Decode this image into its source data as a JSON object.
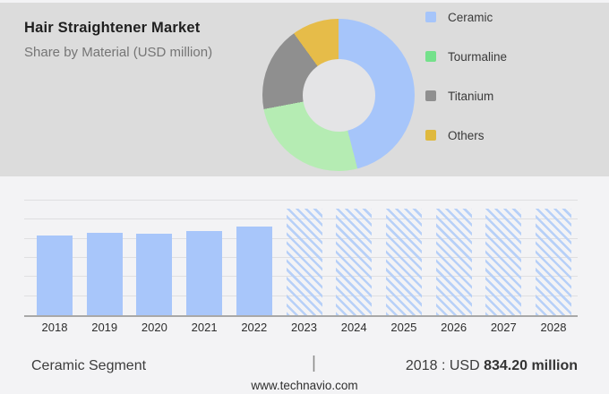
{
  "header": {
    "title": "Hair Straightener Market",
    "subtitle": "Share by Material (USD million)"
  },
  "colors": {
    "panel_bg": "#dcdcdc",
    "page_bg": "#f3f3f5",
    "donut_hole": "#e4e4e6",
    "bar_solid": "#a8c6fa",
    "bar_hatch": "#b7d0f8",
    "gridline": "#dfdfe1",
    "axis": "#a8a8a8"
  },
  "chart_data": [
    {
      "type": "pie",
      "subtype": "donut",
      "title": "Hair Straightener Market — Share by Material (USD million)",
      "labels": [
        "Ceramic",
        "Tourmaline",
        "Titanium",
        "Others"
      ],
      "values": [
        46,
        26,
        18,
        10
      ],
      "unit": "percent (estimated from arc angles; no numeric labels shown)",
      "slice_colors": [
        "#a6c5fa",
        "#b5ecb3",
        "#8f8f8f",
        "#e6bc49"
      ],
      "legend_swatch_colors": [
        "#a6c5fa",
        "#74e18b",
        "#8f8f8f",
        "#dfb93e"
      ],
      "legend_position": "right",
      "start_angle_deg": 0,
      "clockwise": true
    },
    {
      "type": "bar",
      "categories": [
        "2018",
        "2019",
        "2020",
        "2021",
        "2022",
        "2023",
        "2024",
        "2025",
        "2026",
        "2027",
        "2028"
      ],
      "values": [
        834.2,
        860,
        850,
        885,
        930,
        1115,
        1115,
        1115,
        1115,
        1115,
        1115
      ],
      "forecast_flags": [
        false,
        false,
        false,
        false,
        false,
        true,
        true,
        true,
        true,
        true,
        true
      ],
      "forecast_style": "diagonal-hatch",
      "title": "",
      "xlabel": "",
      "ylabel": "",
      "ylim": [
        0,
        1200
      ],
      "gridline_interval": 200,
      "grid": true,
      "y_tick_labels_shown": false
    }
  ],
  "footer": {
    "segment_label": "Ceramic Segment",
    "separator": "|",
    "value_prefix": "2018 : USD ",
    "value_bold": "834.20 million",
    "website": "www.technavio.com"
  }
}
